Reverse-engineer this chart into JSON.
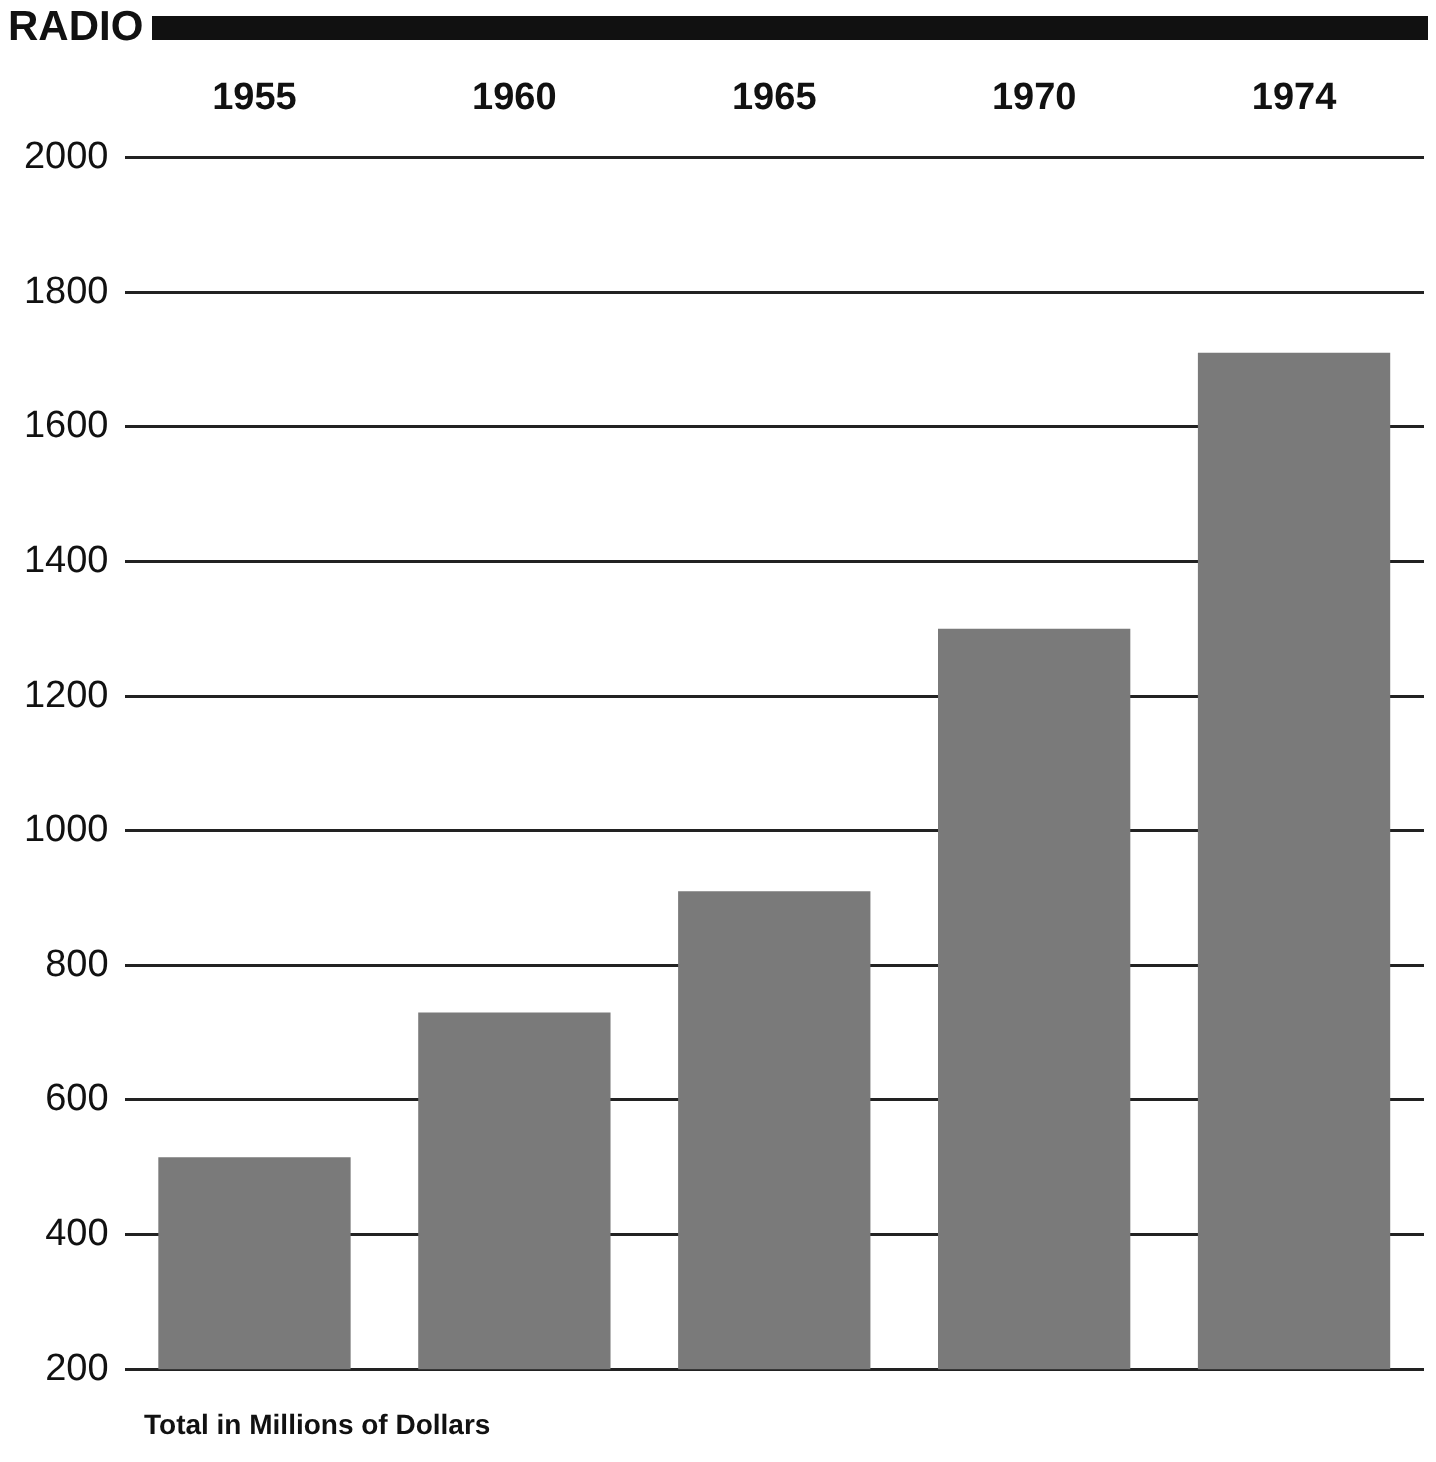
{
  "chart_data": {
    "type": "bar",
    "title": "RADIO",
    "categories": [
      "1955",
      "1960",
      "1965",
      "1970",
      "1974"
    ],
    "values": [
      515,
      730,
      910,
      1300,
      1710
    ],
    "color": "#7a7a7a",
    "ylim": [
      200,
      2000
    ],
    "yticks": [
      200,
      400,
      600,
      800,
      1000,
      1200,
      1400,
      1600,
      1800,
      2000
    ],
    "grid": "y",
    "legend": false,
    "annotations": [
      "Total in Millions of Dollars"
    ]
  }
}
